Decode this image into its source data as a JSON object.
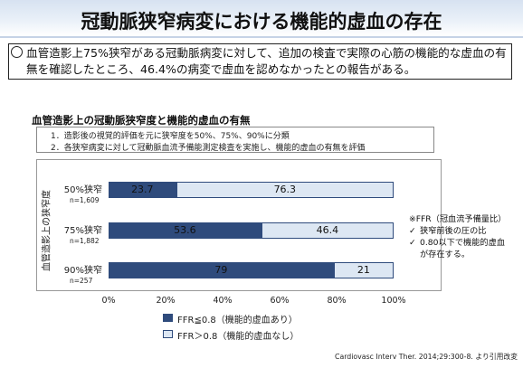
{
  "slide": {
    "title": "冠動脈狭窄病変における機能的虚血の存在",
    "summary": "血管造影上75%狭窄がある冠動脈病変に対して、追加の検査で実際の心筋の機能的な虚血の有無を確認したところ、46.4%の病変で虚血を認めなかったとの報告がある。",
    "citation": "Cardiovasc Interv Ther. 2014;29:300-8.  より引用改変"
  },
  "method": {
    "line1": "1．造影後の視覚的評価を元に狭窄度を50%、75%、90%に分類",
    "line2": "2．各狭窄病変に対して冠動脈血流予備能測定検査を実施し、機能的虚血の有無を評価"
  },
  "note": {
    "heading": "※FFR（冠血流予備量比）",
    "check_mark": "✓",
    "item1": "狭窄前後の圧の比",
    "item2_line1": "0.80以下で機能的虚血",
    "item2_line2": "が存在する。"
  },
  "colors": {
    "series1": "#2f4b7c",
    "series2": "#dde7f3",
    "title_band": "#d7e2f1"
  },
  "chart_data": {
    "type": "bar",
    "orientation": "horizontal",
    "stacked": true,
    "title": "血管造影上の冠動脈狭窄度と機能的虚血の有無",
    "ylabel": "血管造影上の狭窄度",
    "xlabel": "",
    "xlim": [
      0,
      100
    ],
    "x_ticks": [
      "0%",
      "20%",
      "40%",
      "60%",
      "80%",
      "100%"
    ],
    "categories": [
      "50%狭窄",
      "75%狭窄",
      "90%狭窄"
    ],
    "n_labels": [
      "n=1,609",
      "n=1,882",
      "n=257"
    ],
    "series": [
      {
        "name": "FFR≦0.8（機能的虚血あり）",
        "values": [
          23.7,
          53.6,
          79
        ]
      },
      {
        "name": "FFR＞0.8（機能的虚血なし）",
        "values": [
          76.3,
          46.4,
          21
        ]
      }
    ],
    "legend_position": "bottom",
    "grid": false
  }
}
